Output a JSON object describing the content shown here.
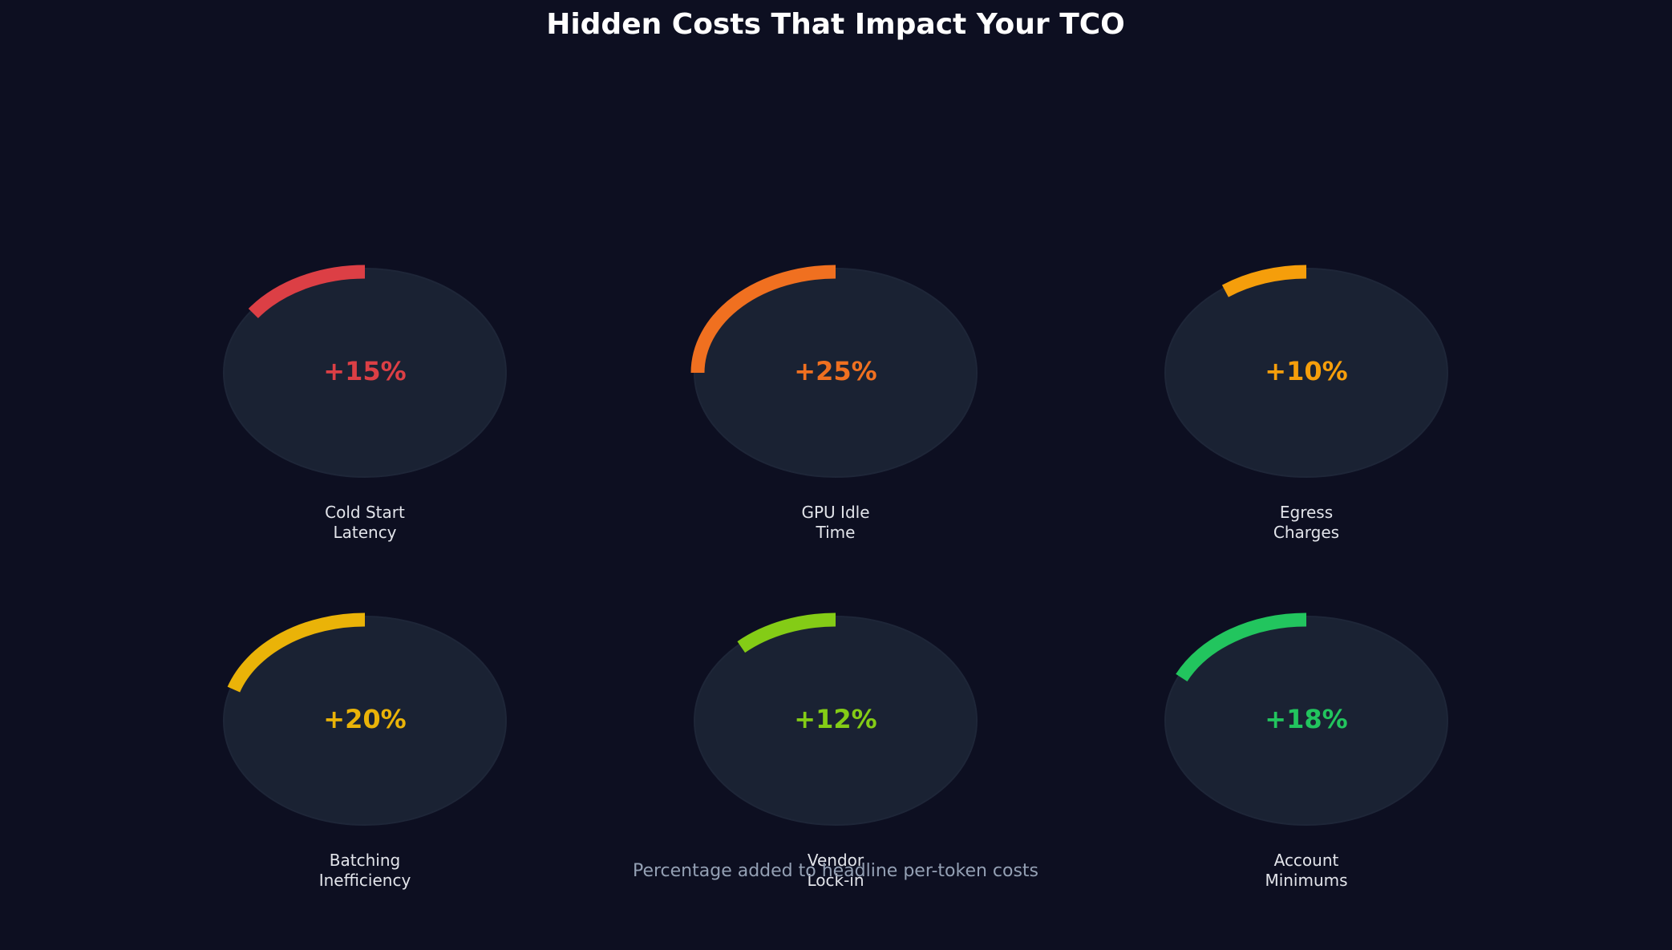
{
  "chart_data": {
    "type": "gauge",
    "title": "Hidden Costs That Impact Your TCO",
    "subtitle": "Percentage added to headline per-token costs",
    "max_percent": 100,
    "items": [
      {
        "label": [
          "Cold Start",
          "Latency"
        ],
        "value": 15,
        "display": "+15%",
        "color": "#dc3f45"
      },
      {
        "label": [
          "GPU Idle",
          "Time"
        ],
        "value": 25,
        "display": "+25%",
        "color": "#f07020"
      },
      {
        "label": [
          "Egress",
          "Charges"
        ],
        "value": 10,
        "display": "+10%",
        "color": "#f59e0b"
      },
      {
        "label": [
          "Batching",
          "Inefficiency"
        ],
        "value": 20,
        "display": "+20%",
        "color": "#eab308"
      },
      {
        "label": [
          "Vendor",
          "Lock-in"
        ],
        "value": 12,
        "display": "+12%",
        "color": "#84cc16"
      },
      {
        "label": [
          "Account",
          "Minimums"
        ],
        "value": 18,
        "display": "+18%",
        "color": "#22c55e"
      }
    ],
    "colors": {
      "background": "#0d0f21",
      "circle": "#1a2233",
      "circle_edge": "#1e2638"
    }
  }
}
